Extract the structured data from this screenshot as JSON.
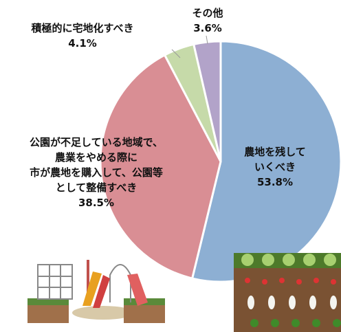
{
  "chart_data": {
    "type": "pie",
    "categories": [
      "農地を残して\nいくべき",
      "公園が不足している地域で、\n農業をやめる際に\n市が農地を購入して、公園等\nとして整備すべき",
      "積極的に宅地化すべき",
      "その他"
    ],
    "values": [
      53.8,
      38.5,
      4.1,
      3.6
    ],
    "value_labels": [
      "53.8%",
      "38.5%",
      "4.1%",
      "3.6%"
    ],
    "colors": [
      "#8dafd3",
      "#d98e94",
      "#c6daa9",
      "#b2a3c9"
    ]
  }
}
